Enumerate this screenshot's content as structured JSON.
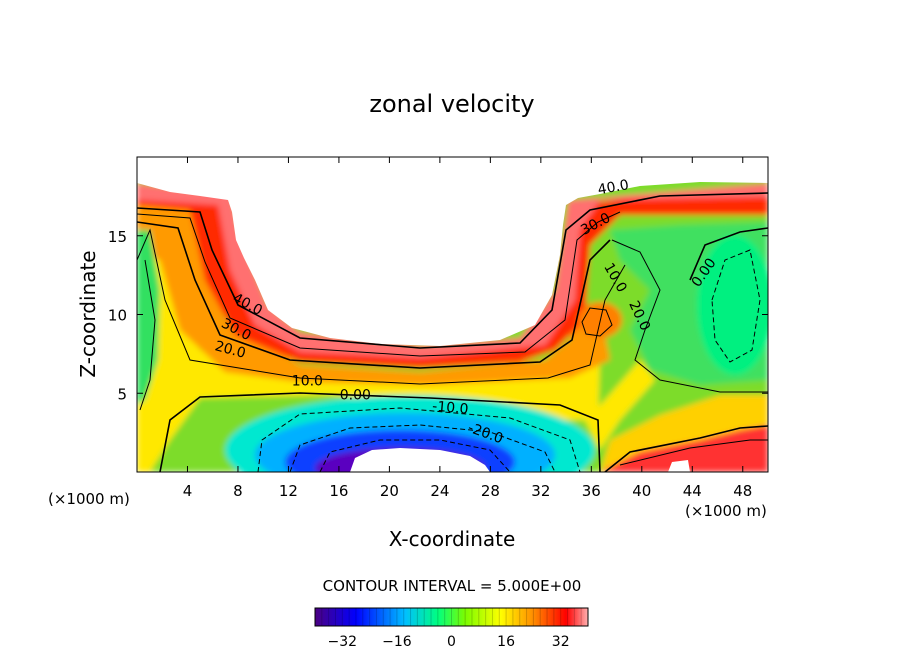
{
  "chart_data": {
    "type": "contour",
    "title": "zonal velocity",
    "xlabel": "X-coordinate",
    "ylabel": "Z-coordinate",
    "x_unit_label": "(×1000 m)",
    "x_unit_label_right": "(×1000 m)",
    "xlim": [
      0,
      50
    ],
    "ylim": [
      0,
      20
    ],
    "x_ticks": [
      4,
      8,
      12,
      16,
      20,
      24,
      28,
      32,
      36,
      40,
      44,
      48
    ],
    "y_ticks": [
      5,
      10,
      15
    ],
    "contour_interval_text": "CONTOUR INTERVAL = 5.000E+00",
    "contour_interval": 5.0,
    "colorbar": {
      "min": -40,
      "max": 40,
      "ticks": [
        -32,
        -16,
        0,
        16,
        32
      ],
      "colors": [
        "#4b0082",
        "#0000ff",
        "#00bfff",
        "#00ff80",
        "#7cfc00",
        "#ffff00",
        "#ff8c00",
        "#ff0000",
        "#ffb0b0"
      ]
    },
    "contour_labels": [
      {
        "text": "40.0",
        "x": 8.6,
        "z": 10.4,
        "rot": 28
      },
      {
        "text": "30.0",
        "x": 7.7,
        "z": 8.8,
        "rot": 28
      },
      {
        "text": "20.0",
        "x": 7.3,
        "z": 7.5,
        "rot": 15
      },
      {
        "text": "10.0",
        "x": 13.5,
        "z": 5.5,
        "rot": 0
      },
      {
        "text": "0.00",
        "x": 17.3,
        "z": 4.6,
        "rot": 0
      },
      {
        "text": "-10.0",
        "x": 24.8,
        "z": 3.8,
        "rot": 5
      },
      {
        "text": "-20.0",
        "x": 27.5,
        "z": 2.2,
        "rot": 20
      },
      {
        "text": "40.0",
        "x": 37.8,
        "z": 17.8,
        "rot": -10
      },
      {
        "text": "30.0",
        "x": 36.5,
        "z": 15.5,
        "rot": -28
      },
      {
        "text": "10.0",
        "x": 37.6,
        "z": 12.2,
        "rot": 60
      },
      {
        "text": "20.0",
        "x": 39.5,
        "z": 9.8,
        "rot": 65
      },
      {
        "text": "0.00",
        "x": 45.2,
        "z": 12.5,
        "rot": -55
      }
    ]
  }
}
